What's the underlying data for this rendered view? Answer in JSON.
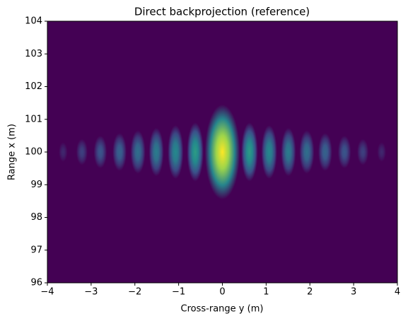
{
  "chart_data": {
    "type": "heatmap",
    "title": "Direct backprojection (reference)",
    "xlabel": "Cross-range y (m)",
    "ylabel": "Range x (m)",
    "xlim": [
      -4,
      4
    ],
    "ylim": [
      96,
      104
    ],
    "xticks": [
      {
        "value": -4,
        "label": "−4"
      },
      {
        "value": -3,
        "label": "−3"
      },
      {
        "value": -2,
        "label": "−2"
      },
      {
        "value": -1,
        "label": "−1"
      },
      0,
      1,
      2,
      3,
      4
    ],
    "yticks": [
      96,
      97,
      98,
      99,
      100,
      101,
      102,
      103,
      104
    ],
    "colormap": [
      "#440154",
      "#3b528b",
      "#21918c",
      "#5ec962",
      "#fde725"
    ],
    "lobes": {
      "center_x": 100,
      "x": [
        -3.64,
        -3.21,
        -2.79,
        -2.35,
        -1.93,
        -1.51,
        -1.07,
        -0.62,
        0,
        0.62,
        1.07,
        1.51,
        1.93,
        2.35,
        2.79,
        3.21,
        3.64
      ],
      "values": [
        0.12,
        0.2,
        0.27,
        0.32,
        0.37,
        0.42,
        0.47,
        0.55,
        1.0,
        0.55,
        0.47,
        0.42,
        0.37,
        0.32,
        0.27,
        0.2,
        0.12
      ],
      "half_height": [
        0.3,
        0.4,
        0.5,
        0.58,
        0.66,
        0.74,
        0.82,
        0.9,
        1.45,
        0.9,
        0.82,
        0.74,
        0.66,
        0.58,
        0.5,
        0.4,
        0.3
      ],
      "half_width": [
        0.1,
        0.13,
        0.15,
        0.16,
        0.17,
        0.17,
        0.18,
        0.19,
        0.4,
        0.19,
        0.18,
        0.17,
        0.17,
        0.16,
        0.15,
        0.13,
        0.1
      ]
    }
  }
}
